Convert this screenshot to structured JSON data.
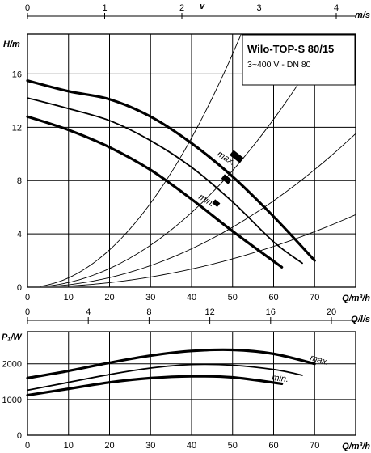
{
  "chart_data": [
    {
      "type": "line",
      "title": "Wilo-TOP-S 80/15",
      "subtitle": "3~400 V - DN 80",
      "xlabel": "Q/m³/h",
      "ylabel": "H/m",
      "top_axis_label": "m/s",
      "top_axis_title": "v",
      "xlim": [
        0,
        80
      ],
      "ylim": [
        0,
        19
      ],
      "x_ticks": [
        0,
        10,
        20,
        30,
        40,
        50,
        60,
        70
      ],
      "y_ticks": [
        0,
        4,
        8,
        12,
        16
      ],
      "top_ticks": [
        0,
        1,
        2,
        3,
        4
      ],
      "grid": true,
      "series": [
        {
          "name": "max.",
          "style": "thick",
          "x": [
            0,
            10,
            20,
            30,
            40,
            50,
            60,
            70
          ],
          "y": [
            15.5,
            14.7,
            14.1,
            12.8,
            10.8,
            8.3,
            5.3,
            2.0
          ]
        },
        {
          "name": "",
          "style": "thin",
          "x": [
            0,
            10,
            20,
            30,
            40,
            50,
            60,
            67
          ],
          "y": [
            14.2,
            13.4,
            12.5,
            11.0,
            9.0,
            6.4,
            3.4,
            1.8
          ]
        },
        {
          "name": "min.",
          "style": "thick",
          "x": [
            0,
            10,
            20,
            30,
            40,
            50,
            62
          ],
          "y": [
            12.8,
            11.8,
            10.5,
            8.8,
            6.6,
            4.2,
            1.5
          ]
        }
      ],
      "system_curves": [
        {
          "k": 0.007,
          "x_start": 3
        },
        {
          "k": 0.0035,
          "x_start": 5
        },
        {
          "k": 0.0018,
          "x_start": 7
        },
        {
          "k": 0.00085,
          "x_start": 10
        }
      ],
      "markers": [
        {
          "x": 51,
          "y": 9.8,
          "size": "large"
        },
        {
          "x": 48.5,
          "y": 8.1,
          "size": "medium"
        },
        {
          "x": 46,
          "y": 6.3,
          "size": "small"
        }
      ],
      "labels": [
        "max.",
        "min."
      ]
    },
    {
      "type": "line",
      "xlabel": "Q/m³/h",
      "ylabel": "P₁/W",
      "top_axis_label": "Q/l/s",
      "xlim": [
        0,
        80
      ],
      "ylim": [
        0,
        2900
      ],
      "x_ticks": [
        0,
        10,
        20,
        30,
        40,
        50,
        60,
        70
      ],
      "y_ticks": [
        0,
        1000,
        2000
      ],
      "top_ticks": [
        0,
        4,
        8,
        12,
        16,
        20
      ],
      "grid": true,
      "series": [
        {
          "name": "max.",
          "style": "thick",
          "x": [
            0,
            10,
            20,
            30,
            40,
            50,
            60,
            70
          ],
          "y": [
            1600,
            1800,
            2030,
            2230,
            2360,
            2390,
            2280,
            2000
          ]
        },
        {
          "name": "",
          "style": "thin",
          "x": [
            0,
            10,
            20,
            30,
            40,
            50,
            60,
            67
          ],
          "y": [
            1260,
            1480,
            1700,
            1880,
            1980,
            1960,
            1840,
            1680
          ]
        },
        {
          "name": "min.",
          "style": "thick",
          "x": [
            0,
            10,
            20,
            30,
            40,
            50,
            62
          ],
          "y": [
            1120,
            1300,
            1480,
            1600,
            1650,
            1620,
            1440
          ]
        }
      ],
      "labels": [
        "max.",
        "min."
      ]
    }
  ]
}
